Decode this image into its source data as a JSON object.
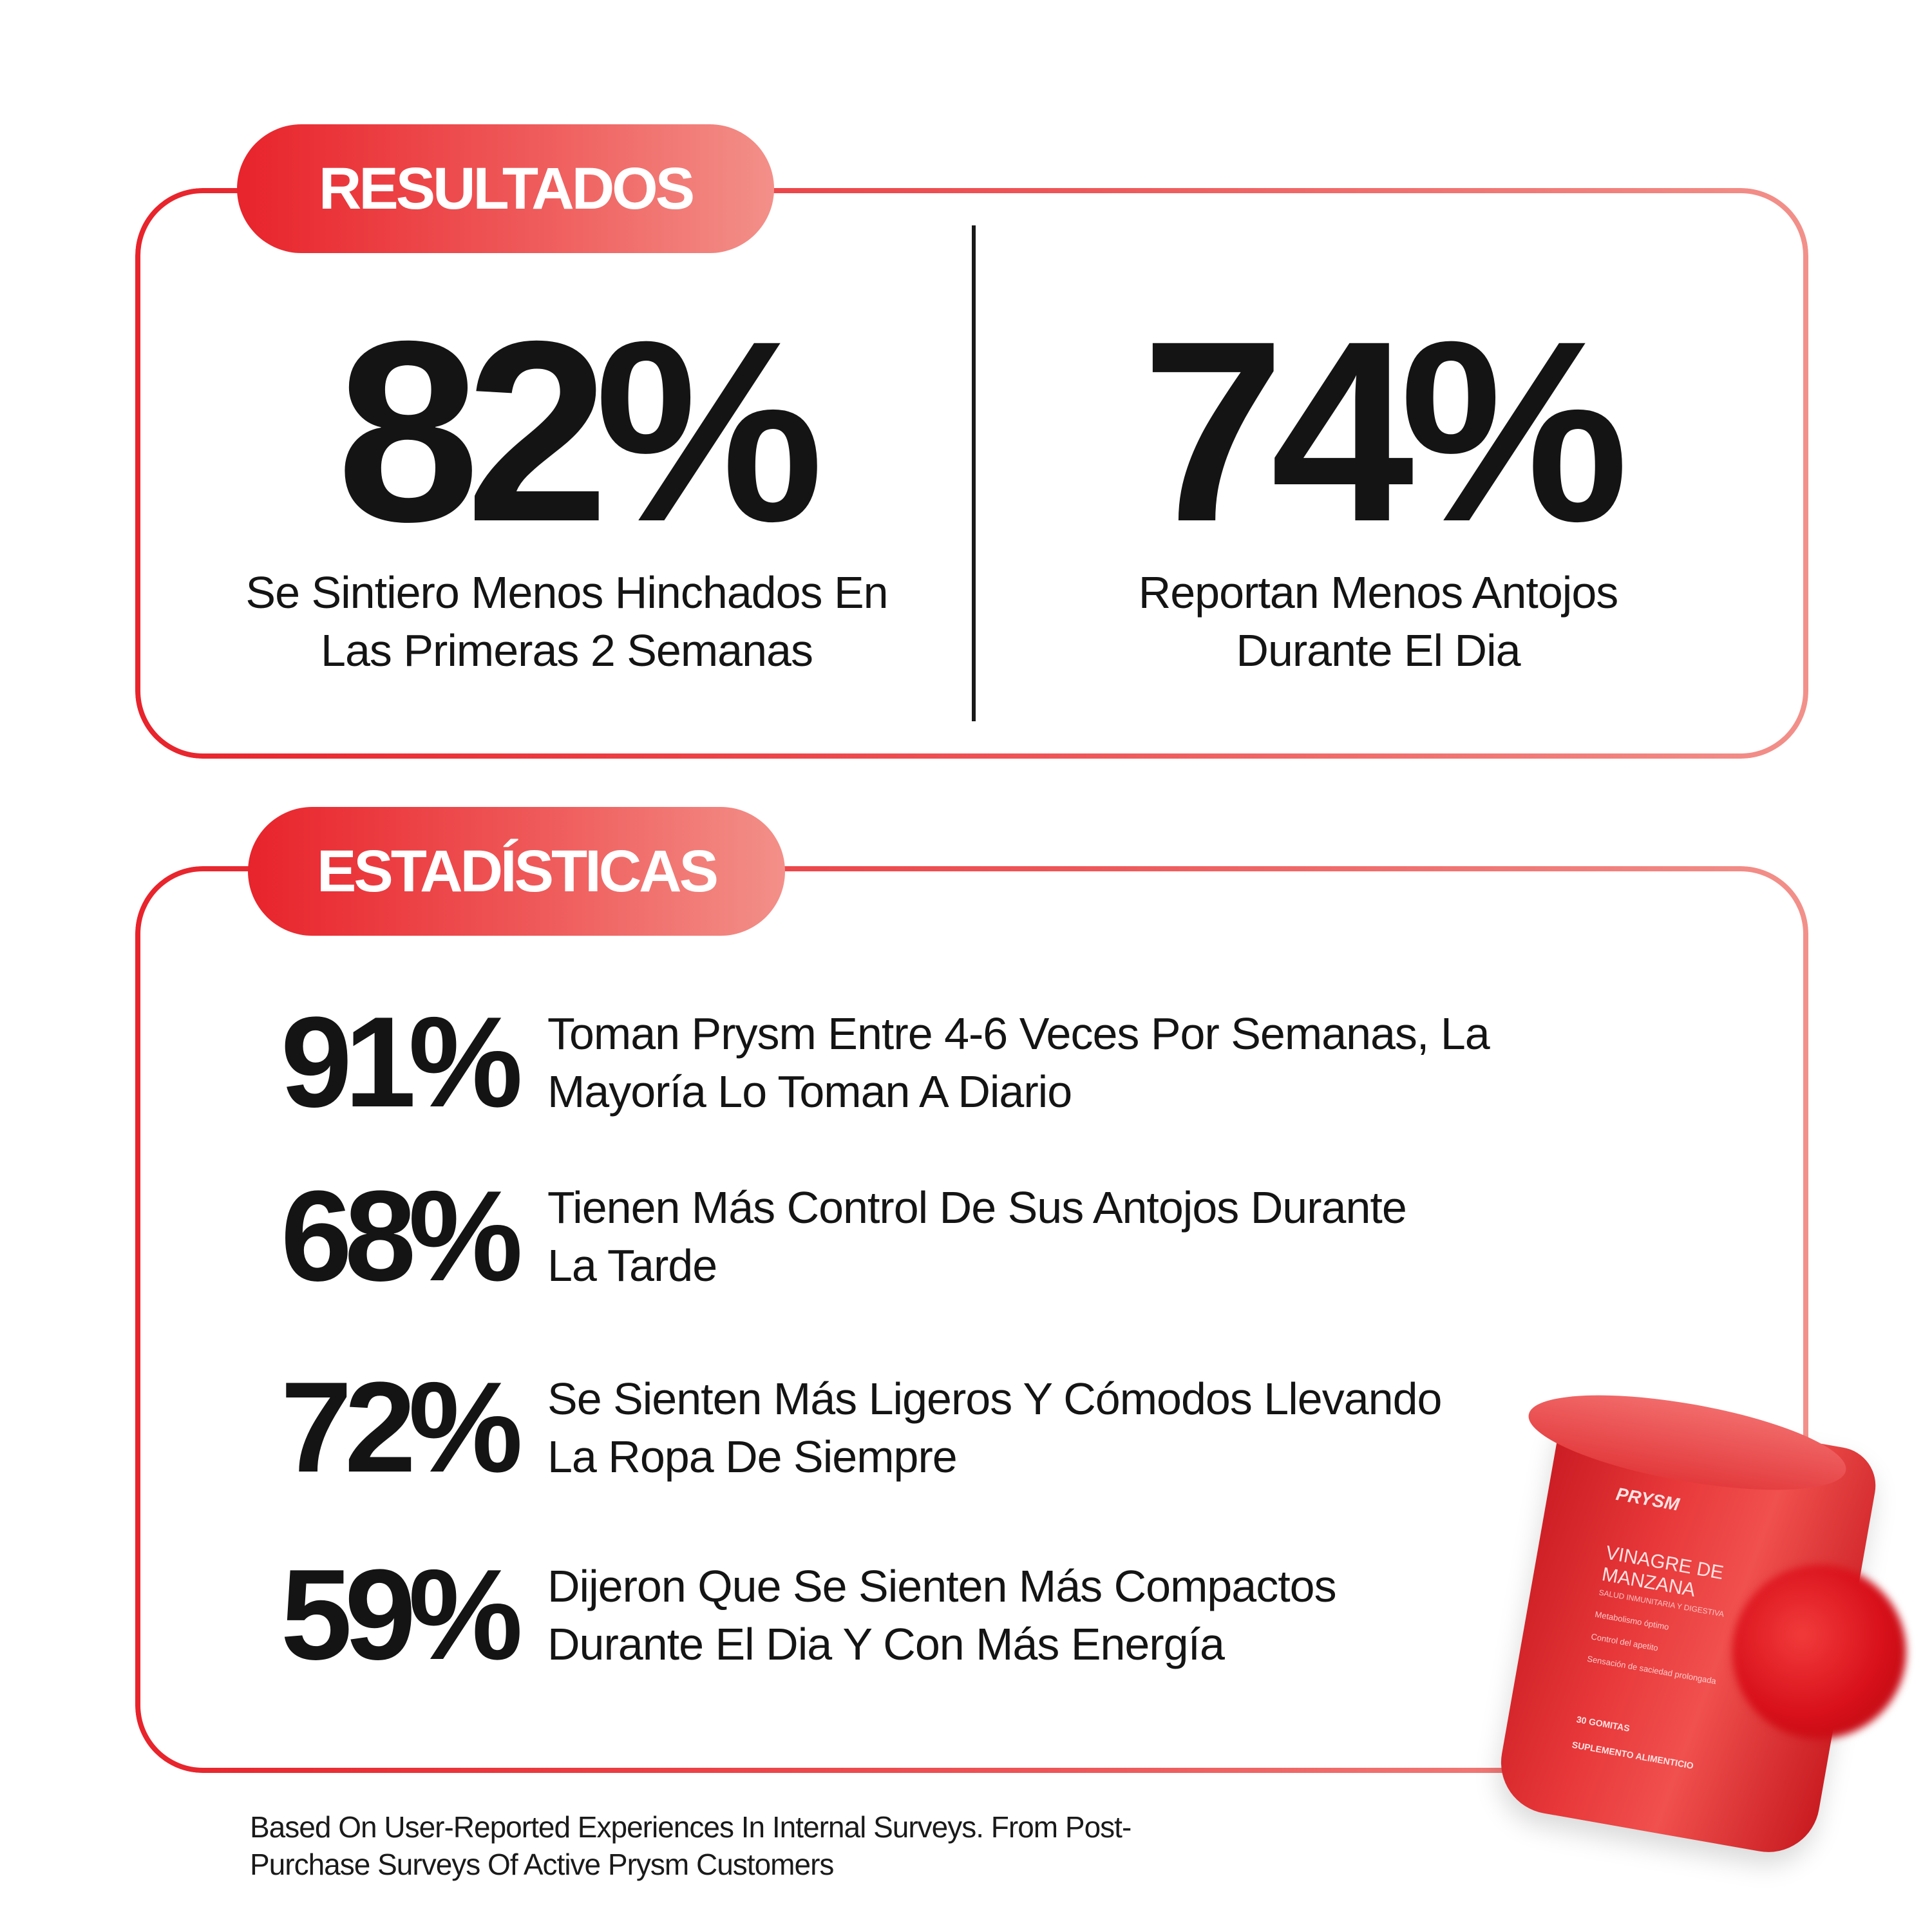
{
  "resultados": {
    "heading": "RESULTADOS",
    "left": {
      "value": "82%",
      "caption_line1": "Se Sintiero Menos Hinchados En",
      "caption_line2": "Las Primeras 2 Semanas"
    },
    "right": {
      "value": "74%",
      "caption_line1": "Reportan Menos Antojos",
      "caption_line2": "Durante El Dia"
    }
  },
  "estadisticas": {
    "heading": "ESTADÍSTICAS",
    "items": [
      {
        "value": "91%",
        "line1": "Toman Prysm Entre 4-6 Veces Por Semanas, La",
        "line2": "Mayoría Lo Toman A Diario"
      },
      {
        "value": "68%",
        "line1": "Tienen Más Control De Sus Antojos Durante",
        "line2": "La Tarde"
      },
      {
        "value": "72%",
        "line1": "Se Sienten Más Ligeros Y Cómodos Llevando",
        "line2": "La Ropa De Siempre"
      },
      {
        "value": "59%",
        "line1": "Dijeron Que Se Sienten Más Compactos",
        "line2": "Durante El Dia Y Con Más Energía"
      }
    ]
  },
  "footnote": {
    "line1": "Based On User-Reported Experiences In Internal Surveys. From Post-",
    "line2": "Purchase Surveys Of Active Prysm Customers"
  },
  "product": {
    "brand": "PRYSM",
    "name": "VINAGRE DE MANZANA",
    "subtitle": "SALUD INMUNITARIA Y DIGESTIVA",
    "bullets": [
      "Metabolismo óptimo",
      "Control del apetito",
      "Sensación de saciedad prolongada"
    ],
    "count": "30 GOMITAS",
    "category": "SUPLEMENTO ALIMENTICIO"
  },
  "colors": {
    "accent": "#e8232b",
    "accent_light": "#f2908a",
    "text": "#141414"
  }
}
